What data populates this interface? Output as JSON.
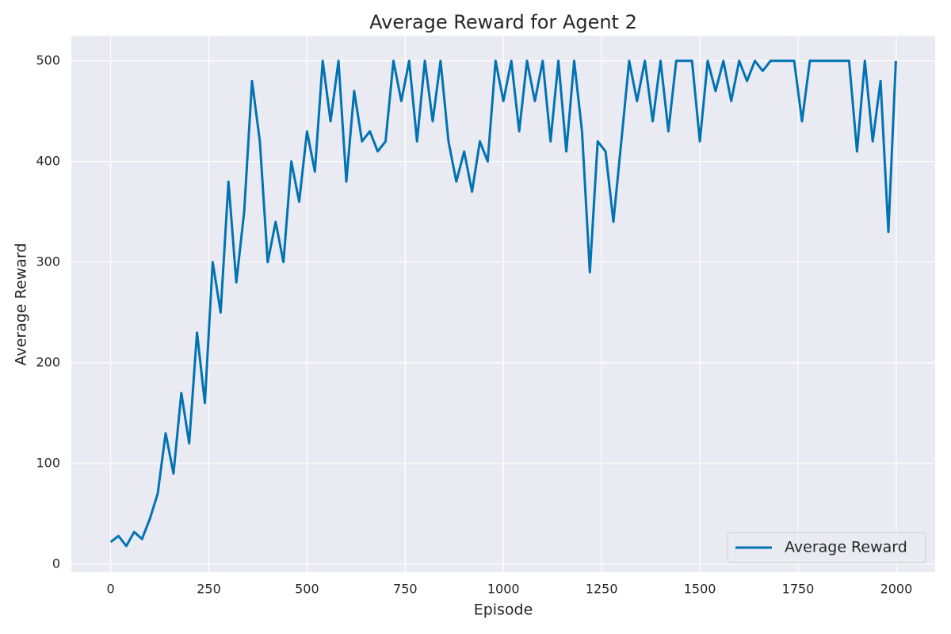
{
  "chart_data": {
    "type": "line",
    "title": "Average Reward for Agent 2",
    "x_label": "Episode",
    "y_label": "Average Reward",
    "x": [
      0,
      20,
      40,
      60,
      80,
      100,
      120,
      140,
      160,
      180,
      200,
      220,
      240,
      260,
      280,
      300,
      320,
      340,
      360,
      380,
      400,
      420,
      440,
      460,
      480,
      500,
      520,
      540,
      560,
      580,
      600,
      620,
      640,
      660,
      680,
      700,
      720,
      740,
      760,
      780,
      800,
      820,
      840,
      860,
      880,
      900,
      920,
      940,
      960,
      980,
      1000,
      1020,
      1040,
      1060,
      1080,
      1100,
      1120,
      1140,
      1160,
      1180,
      1200,
      1220,
      1240,
      1260,
      1280,
      1300,
      1320,
      1340,
      1360,
      1380,
      1400,
      1420,
      1440,
      1460,
      1480,
      1500,
      1520,
      1540,
      1560,
      1580,
      1600,
      1620,
      1640,
      1660,
      1680,
      1700,
      1720,
      1740,
      1760,
      1780,
      1800,
      1820,
      1840,
      1860,
      1880,
      1900,
      1920,
      1940,
      1960,
      1980,
      1999
    ],
    "series": [
      {
        "name": "Average Reward",
        "color": "#0173b2",
        "values": [
          22,
          28,
          18,
          32,
          25,
          45,
          70,
          130,
          90,
          170,
          120,
          230,
          160,
          300,
          250,
          380,
          280,
          350,
          480,
          420,
          300,
          340,
          300,
          400,
          360,
          430,
          390,
          500,
          440,
          500,
          380,
          470,
          420,
          430,
          410,
          420,
          500,
          460,
          500,
          420,
          500,
          440,
          500,
          420,
          380,
          410,
          370,
          420,
          400,
          500,
          460,
          500,
          430,
          500,
          460,
          500,
          420,
          500,
          410,
          500,
          430,
          290,
          420,
          410,
          340,
          420,
          500,
          460,
          500,
          440,
          500,
          430,
          500,
          500,
          500,
          420,
          500,
          470,
          500,
          460,
          500,
          480,
          500,
          490,
          500,
          500,
          500,
          500,
          440,
          500,
          500,
          500,
          500,
          500,
          500,
          410,
          500,
          420,
          480,
          330,
          500
        ]
      }
    ],
    "xlim": [
      -100,
      2099
    ],
    "ylim": [
      -8,
      525
    ],
    "xticks": [
      0,
      250,
      500,
      750,
      1000,
      1250,
      1500,
      1750,
      2000
    ],
    "yticks": [
      0,
      100,
      200,
      300,
      400,
      500
    ],
    "grid": true,
    "legend_position": "lower right"
  }
}
